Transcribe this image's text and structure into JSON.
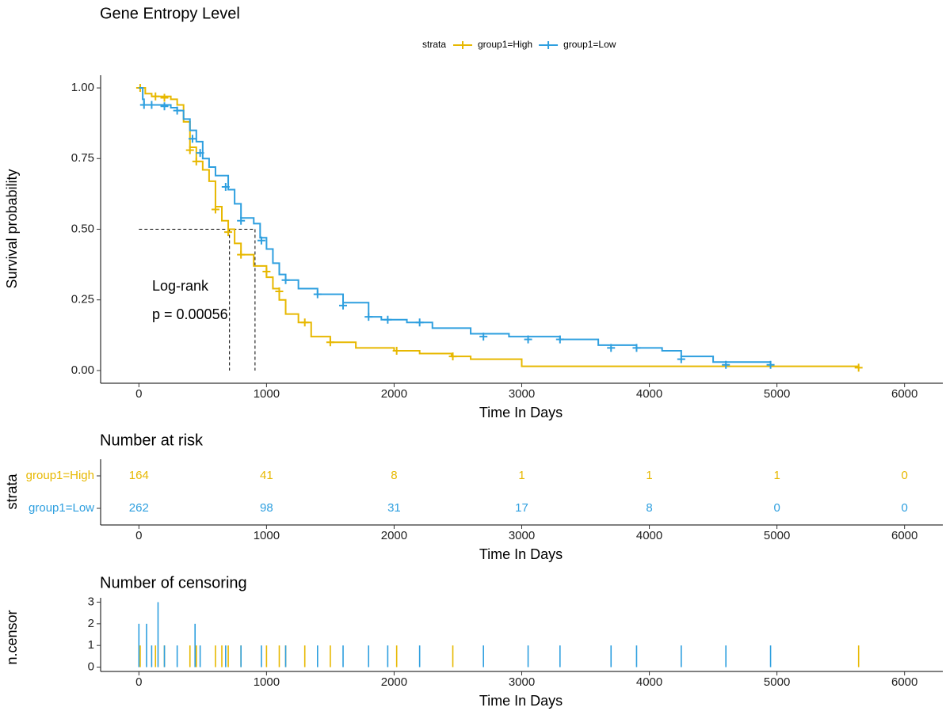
{
  "chart_data": [
    {
      "type": "km",
      "title": "Gene Entropy Level",
      "legend_title": "strata",
      "xlabel": "Time In Days",
      "ylabel": "Survival probability",
      "xlim": [
        -300,
        6300
      ],
      "ylim": [
        -0.045,
        1.045
      ],
      "xticks": [
        0,
        1000,
        2000,
        3000,
        4000,
        5000,
        6000
      ],
      "yticks": [
        {
          "value": 0,
          "label": "0.00"
        },
        {
          "value": 0.25,
          "label": "0.25"
        },
        {
          "value": 0.5,
          "label": "0.50"
        },
        {
          "value": 0.75,
          "label": "0.75"
        },
        {
          "value": 1,
          "label": "1.00"
        }
      ],
      "annotations": [
        "Log-rank",
        "p = 0.00056"
      ],
      "median_level": 0.5,
      "median_times": [
        710,
        910
      ],
      "series": [
        {
          "name": "group1=High",
          "color": "#E7B800",
          "x": [
            0,
            50,
            100,
            250,
            300,
            350,
            400,
            450,
            500,
            550,
            600,
            650,
            700,
            750,
            800,
            900,
            1000,
            1050,
            1100,
            1150,
            1250,
            1350,
            1500,
            1700,
            2000,
            2200,
            2450,
            2600,
            3000,
            5640
          ],
          "values": [
            1,
            0.98,
            0.97,
            0.96,
            0.94,
            0.88,
            0.79,
            0.74,
            0.71,
            0.67,
            0.58,
            0.53,
            0.5,
            0.45,
            0.41,
            0.37,
            0.33,
            0.29,
            0.25,
            0.2,
            0.17,
            0.12,
            0.1,
            0.08,
            0.07,
            0.06,
            0.05,
            0.04,
            0.015,
            0.01
          ],
          "censor_x": [
            10,
            130,
            200,
            400,
            450,
            600,
            700,
            800,
            1000,
            1100,
            1300,
            1500,
            2020,
            2460,
            5640
          ],
          "censor_values": [
            1,
            0.97,
            0.965,
            0.78,
            0.74,
            0.57,
            0.49,
            0.41,
            0.35,
            0.28,
            0.17,
            0.1,
            0.07,
            0.05,
            0.01
          ]
        },
        {
          "name": "group1=Low",
          "color": "#2E9FDF",
          "x": [
            0,
            30,
            40,
            250,
            300,
            350,
            400,
            450,
            500,
            550,
            600,
            700,
            750,
            800,
            900,
            950,
            1000,
            1050,
            1100,
            1150,
            1250,
            1400,
            1600,
            1800,
            1900,
            2100,
            2300,
            2600,
            2900,
            3300,
            3600,
            3900,
            4100,
            4250,
            4500,
            4950
          ],
          "values": [
            1,
            0.96,
            0.94,
            0.93,
            0.92,
            0.89,
            0.85,
            0.81,
            0.75,
            0.72,
            0.69,
            0.64,
            0.59,
            0.54,
            0.52,
            0.47,
            0.43,
            0.38,
            0.34,
            0.32,
            0.29,
            0.27,
            0.24,
            0.19,
            0.18,
            0.17,
            0.15,
            0.13,
            0.12,
            0.11,
            0.09,
            0.08,
            0.07,
            0.05,
            0.03,
            0.02
          ],
          "censor_x": [
            40,
            100,
            200,
            300,
            420,
            480,
            680,
            800,
            960,
            1150,
            1400,
            1600,
            1800,
            1950,
            2200,
            2700,
            3050,
            3300,
            3700,
            3900,
            4250,
            4600,
            4950
          ],
          "censor_values": [
            0.94,
            0.94,
            0.935,
            0.92,
            0.82,
            0.77,
            0.65,
            0.53,
            0.46,
            0.32,
            0.27,
            0.23,
            0.19,
            0.18,
            0.17,
            0.12,
            0.11,
            0.11,
            0.08,
            0.08,
            0.04,
            0.02,
            0.02
          ]
        }
      ]
    },
    {
      "type": "risk_table",
      "title": "Number at risk",
      "xlabel": "Time In Days",
      "ylabel": "strata",
      "xlim": [
        -300,
        6300
      ],
      "xticks": [
        0,
        1000,
        2000,
        3000,
        4000,
        5000,
        6000
      ],
      "series": [
        {
          "name": "group1=High",
          "color": "#E7B800",
          "values": [
            164,
            41,
            8,
            1,
            1,
            1,
            0
          ]
        },
        {
          "name": "group1=Low",
          "color": "#2E9FDF",
          "values": [
            262,
            98,
            31,
            17,
            8,
            0,
            0
          ]
        }
      ]
    },
    {
      "type": "censor_bar",
      "title": "Number of censoring",
      "xlabel": "Time In Days",
      "ylabel": "n.censor",
      "xlim": [
        -300,
        6300
      ],
      "ylim": [
        -0.2,
        3.2
      ],
      "xticks": [
        0,
        1000,
        2000,
        3000,
        4000,
        5000,
        6000
      ],
      "yticks": [
        0,
        1,
        2,
        3
      ],
      "series": [
        {
          "name": "group1=High",
          "color": "#E7B800",
          "x": [
            10,
            130,
            200,
            400,
            450,
            600,
            650,
            700,
            800,
            1000,
            1100,
            1150,
            1300,
            1500,
            2020,
            2460,
            5640
          ],
          "values": [
            1,
            1,
            1,
            1,
            1,
            1,
            1,
            1,
            1,
            1,
            1,
            1,
            1,
            1,
            1,
            1,
            1
          ]
        },
        {
          "name": "group1=Low",
          "color": "#2E9FDF",
          "x": [
            0,
            60,
            100,
            150,
            200,
            300,
            440,
            480,
            680,
            800,
            960,
            1150,
            1400,
            1600,
            1800,
            1950,
            2200,
            2700,
            3050,
            3300,
            3700,
            3900,
            4250,
            4600,
            4950
          ],
          "values": [
            2,
            2,
            1,
            3,
            1,
            1,
            2,
            1,
            1,
            1,
            1,
            1,
            1,
            1,
            1,
            1,
            1,
            1,
            1,
            1,
            1,
            1,
            1,
            1,
            1
          ]
        }
      ]
    }
  ]
}
